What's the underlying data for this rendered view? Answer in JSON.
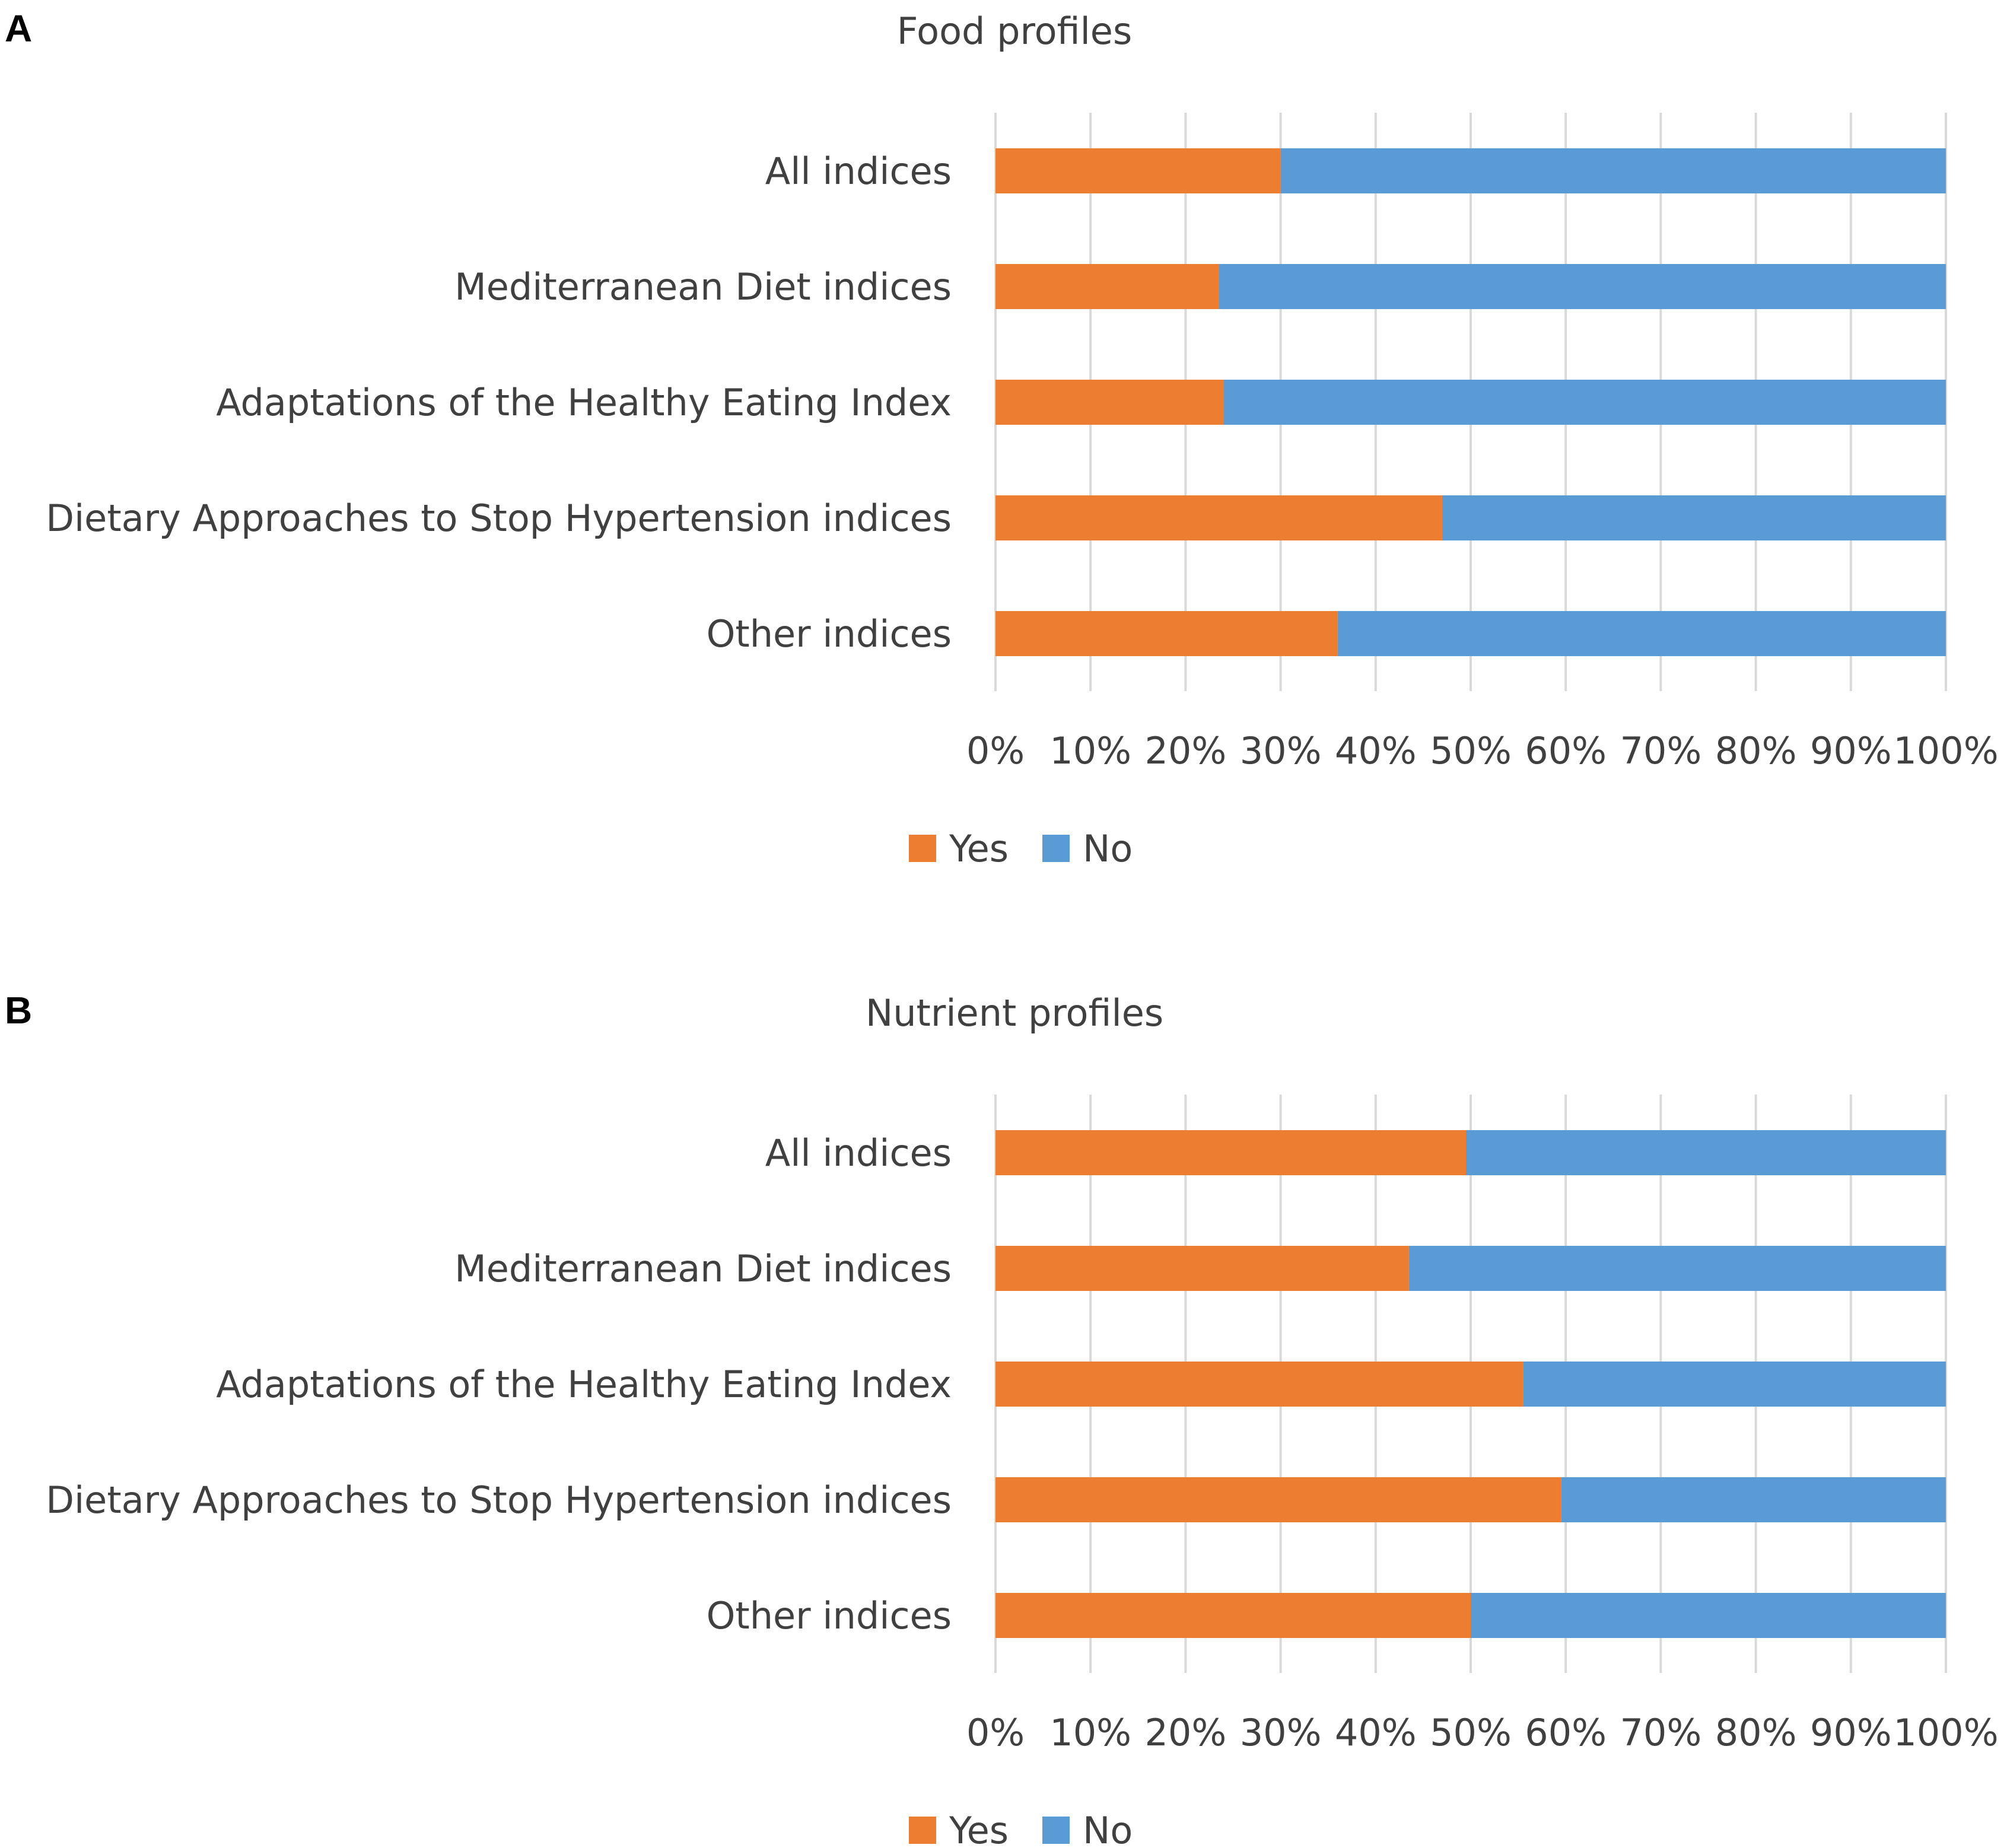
{
  "chart_data": [
    {
      "panel": "A",
      "type": "bar",
      "orientation": "horizontal",
      "stacked": "percent",
      "title": "Food profiles",
      "categories": [
        "All indices",
        "Mediterranean Diet indices",
        "Adaptations of the Healthy Eating Index",
        "Dietary Approaches to Stop Hypertension indices",
        "Other indices"
      ],
      "series": [
        {
          "name": "Yes",
          "color": "#ed7d31",
          "values": [
            30,
            23.5,
            24,
            47,
            36
          ]
        },
        {
          "name": "No",
          "color": "#5b9bd5",
          "values": [
            70,
            76.5,
            76,
            53,
            64
          ]
        }
      ],
      "xticks": [
        "0%",
        "10%",
        "20%",
        "30%",
        "40%",
        "50%",
        "60%",
        "70%",
        "80%",
        "90%",
        "100%"
      ],
      "xlim": [
        0,
        100
      ],
      "grid": "vertical",
      "legend": "bottom-center"
    },
    {
      "panel": "B",
      "type": "bar",
      "orientation": "horizontal",
      "stacked": "percent",
      "title": "Nutrient profiles",
      "categories": [
        "All indices",
        "Mediterranean Diet indices",
        "Adaptations of the Healthy Eating Index",
        "Dietary Approaches to Stop Hypertension indices",
        "Other indices"
      ],
      "series": [
        {
          "name": "Yes",
          "color": "#ed7d31",
          "values": [
            49.5,
            43.5,
            55.5,
            59.5,
            50
          ]
        },
        {
          "name": "No",
          "color": "#5b9bd5",
          "values": [
            50.5,
            56.5,
            44.5,
            40.5,
            50
          ]
        }
      ],
      "xticks": [
        "0%",
        "10%",
        "20%",
        "30%",
        "40%",
        "50%",
        "60%",
        "70%",
        "80%",
        "90%",
        "100%"
      ],
      "xlim": [
        0,
        100
      ],
      "grid": "vertical",
      "legend": "bottom-center"
    }
  ]
}
